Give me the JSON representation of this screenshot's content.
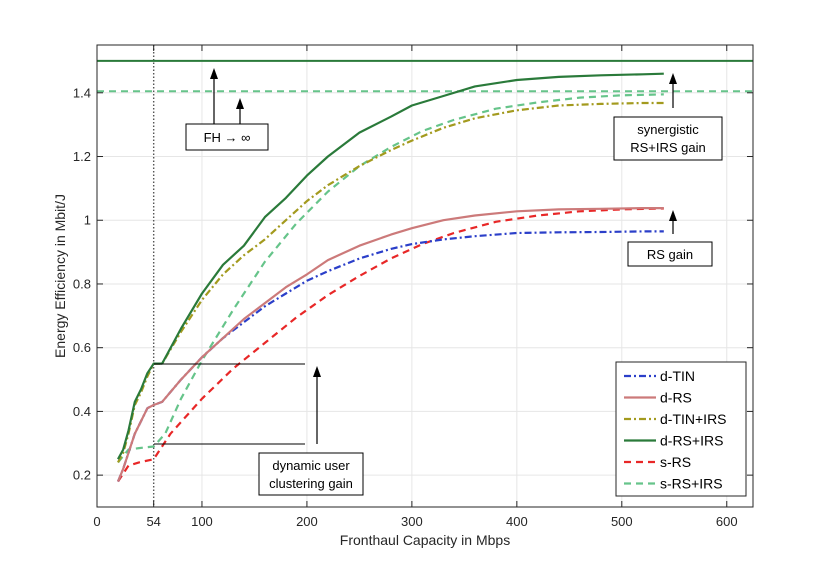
{
  "chart_data": {
    "type": "line",
    "xlabel": "Fronthaul Capacity in Mbps",
    "ylabel": "Energy Efficiency in Mbit/J",
    "xlim": [
      0,
      625
    ],
    "ylim": [
      0.1,
      1.55
    ],
    "xticks": [
      0,
      54,
      100,
      200,
      300,
      400,
      500,
      600
    ],
    "yticks": [
      0.2,
      0.4,
      0.6,
      0.8,
      1,
      1.2,
      1.4
    ],
    "ytick_labels": [
      "0.2",
      "0.4",
      "0.6",
      "0.8",
      "1",
      "1.2",
      "1.4"
    ],
    "grid": true,
    "legend_position": "bottom-right",
    "series": [
      {
        "name": "d-TIN",
        "color": "#2b3fc9",
        "dash": "dashdot",
        "x": [
          20,
          25,
          30,
          36,
          42,
          48,
          54,
          62,
          80,
          100,
          120,
          140,
          160,
          180,
          200,
          220,
          250,
          280,
          300,
          330,
          360,
          400,
          440,
          480,
          520,
          540
        ],
        "y": [
          0.18,
          0.22,
          0.27,
          0.33,
          0.37,
          0.41,
          0.42,
          0.43,
          0.5,
          0.57,
          0.63,
          0.68,
          0.73,
          0.77,
          0.81,
          0.84,
          0.88,
          0.91,
          0.925,
          0.94,
          0.95,
          0.96,
          0.962,
          0.963,
          0.965,
          0.965
        ]
      },
      {
        "name": "d-RS",
        "color": "#cc7a7a",
        "dash": "solid",
        "x": [
          20,
          25,
          30,
          36,
          42,
          48,
          54,
          62,
          80,
          100,
          120,
          140,
          160,
          180,
          200,
          220,
          250,
          280,
          300,
          330,
          360,
          400,
          440,
          480,
          520,
          540
        ],
        "y": [
          0.18,
          0.22,
          0.27,
          0.33,
          0.37,
          0.41,
          0.42,
          0.43,
          0.5,
          0.57,
          0.63,
          0.69,
          0.74,
          0.79,
          0.83,
          0.875,
          0.92,
          0.955,
          0.975,
          1.0,
          1.015,
          1.028,
          1.034,
          1.036,
          1.038,
          1.038
        ]
      },
      {
        "name": "d-TIN+IRS",
        "color": "#a39a1e",
        "dash": "dashdot",
        "x": [
          20,
          25,
          30,
          36,
          42,
          48,
          54,
          62,
          80,
          100,
          120,
          140,
          160,
          180,
          200,
          220,
          250,
          280,
          300,
          330,
          360,
          400,
          440,
          480,
          520,
          540
        ],
        "y": [
          0.24,
          0.27,
          0.33,
          0.42,
          0.46,
          0.51,
          0.55,
          0.55,
          0.65,
          0.75,
          0.83,
          0.89,
          0.94,
          1.0,
          1.06,
          1.11,
          1.17,
          1.22,
          1.25,
          1.29,
          1.32,
          1.345,
          1.36,
          1.365,
          1.368,
          1.368
        ]
      },
      {
        "name": "d-RS+IRS",
        "color": "#2a7a3a",
        "dash": "solid",
        "x": [
          20,
          25,
          30,
          36,
          42,
          48,
          54,
          62,
          80,
          100,
          120,
          140,
          160,
          180,
          200,
          220,
          250,
          280,
          300,
          330,
          360,
          400,
          440,
          480,
          520,
          540
        ],
        "y": [
          0.25,
          0.28,
          0.34,
          0.43,
          0.47,
          0.52,
          0.55,
          0.55,
          0.66,
          0.77,
          0.86,
          0.92,
          1.01,
          1.07,
          1.14,
          1.2,
          1.275,
          1.325,
          1.36,
          1.39,
          1.42,
          1.44,
          1.45,
          1.455,
          1.458,
          1.46
        ]
      },
      {
        "name": "s-RS",
        "color": "#e82727",
        "dash": "dashed",
        "x": [
          20,
          30,
          40,
          54,
          70,
          100,
          130,
          160,
          190,
          220,
          250,
          280,
          310,
          340,
          380,
          420,
          460,
          500,
          540
        ],
        "y": [
          0.18,
          0.23,
          0.24,
          0.25,
          0.33,
          0.44,
          0.535,
          0.615,
          0.695,
          0.765,
          0.825,
          0.88,
          0.925,
          0.96,
          0.995,
          1.015,
          1.028,
          1.034,
          1.037
        ]
      },
      {
        "name": "s-RS+IRS",
        "color": "#66c48a",
        "dash": "dashed",
        "x": [
          20,
          30,
          40,
          54,
          65,
          80,
          100,
          130,
          160,
          190,
          220,
          250,
          280,
          310,
          340,
          380,
          420,
          460,
          500,
          540
        ],
        "y": [
          0.24,
          0.28,
          0.285,
          0.29,
          0.33,
          0.44,
          0.56,
          0.72,
          0.87,
          0.99,
          1.09,
          1.17,
          1.23,
          1.28,
          1.315,
          1.35,
          1.37,
          1.385,
          1.392,
          1.395
        ]
      }
    ],
    "reference_lines": [
      {
        "name": "d-RS+IRS FH→∞",
        "y": 1.5,
        "color": "#2a7a3a",
        "dash": "solid"
      },
      {
        "name": "s-RS+IRS FH→∞",
        "y": 1.405,
        "color": "#66c48a",
        "dash": "dashed"
      }
    ],
    "vline": {
      "x": 54,
      "color": "#555555"
    },
    "annotations": {
      "fh": {
        "text": "FH → ∞"
      },
      "synergistic": {
        "line1": "synergistic",
        "line2": "RS+IRS gain"
      },
      "rsgain": {
        "text": "RS gain"
      },
      "dynamic": {
        "line1": "dynamic user",
        "line2": "clustering gain"
      }
    }
  }
}
